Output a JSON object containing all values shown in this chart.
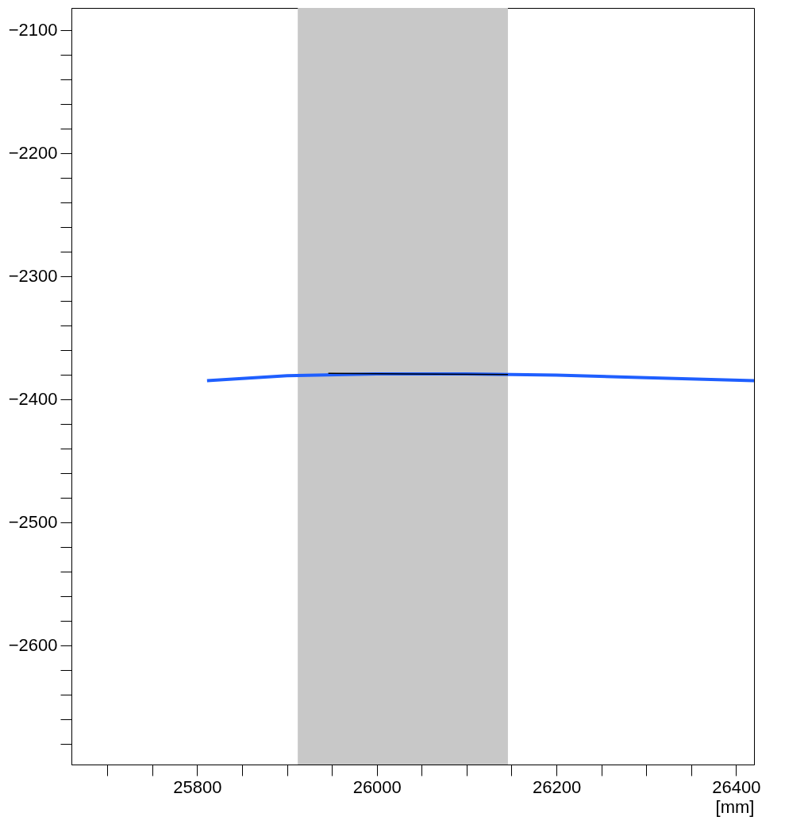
{
  "chart_data": {
    "type": "line",
    "xlabel": "[mm]",
    "xlim": [
      25660,
      26420
    ],
    "ylim": [
      -2697,
      -2082
    ],
    "xticks": [
      {
        "value": 25700,
        "label": null
      },
      {
        "value": 25750,
        "label": null
      },
      25800,
      {
        "value": 25850,
        "label": null
      },
      {
        "value": 25900,
        "label": null
      },
      {
        "value": 25950,
        "label": null
      },
      26000,
      {
        "value": 26050,
        "label": null
      },
      {
        "value": 26100,
        "label": null
      },
      {
        "value": 26150,
        "label": null
      },
      26200,
      {
        "value": 26250,
        "label": null
      },
      {
        "value": 26300,
        "label": null
      },
      {
        "value": 26350,
        "label": null
      },
      26400
    ],
    "yticks": [
      {
        "value": -2680,
        "label": null
      },
      {
        "value": -2660,
        "label": null
      },
      {
        "value": -2640,
        "label": null
      },
      {
        "value": -2620,
        "label": null
      },
      -2600,
      {
        "value": -2580,
        "label": null
      },
      {
        "value": -2560,
        "label": null
      },
      {
        "value": -2540,
        "label": null
      },
      {
        "value": -2520,
        "label": null
      },
      -2500,
      {
        "value": -2480,
        "label": null
      },
      {
        "value": -2460,
        "label": null
      },
      {
        "value": -2440,
        "label": null
      },
      {
        "value": -2420,
        "label": null
      },
      -2400,
      {
        "value": -2380,
        "label": null
      },
      {
        "value": -2360,
        "label": null
      },
      {
        "value": -2340,
        "label": null
      },
      {
        "value": -2320,
        "label": null
      },
      -2300,
      {
        "value": -2280,
        "label": null
      },
      {
        "value": -2260,
        "label": null
      },
      {
        "value": -2240,
        "label": null
      },
      {
        "value": -2220,
        "label": null
      },
      -2200,
      {
        "value": -2180,
        "label": null
      },
      {
        "value": -2160,
        "label": null
      },
      {
        "value": -2140,
        "label": null
      },
      {
        "value": -2120,
        "label": null
      },
      -2100
    ],
    "bands": [
      {
        "axis": "x",
        "from": 25912,
        "to": 26146,
        "color": "#c8c8c8"
      }
    ],
    "series": [
      {
        "color": "#1f5fff",
        "x": [
          25811,
          25900,
          26000,
          26100,
          26200,
          26300,
          26420
        ],
        "values": [
          -2385,
          -2381,
          -2379.5,
          -2379.5,
          -2380.5,
          -2382.5,
          -2385
        ]
      },
      {
        "color": "#000000",
        "x": [
          25946,
          26146
        ],
        "values": [
          -2379,
          -2380
        ]
      }
    ],
    "grid": false
  }
}
